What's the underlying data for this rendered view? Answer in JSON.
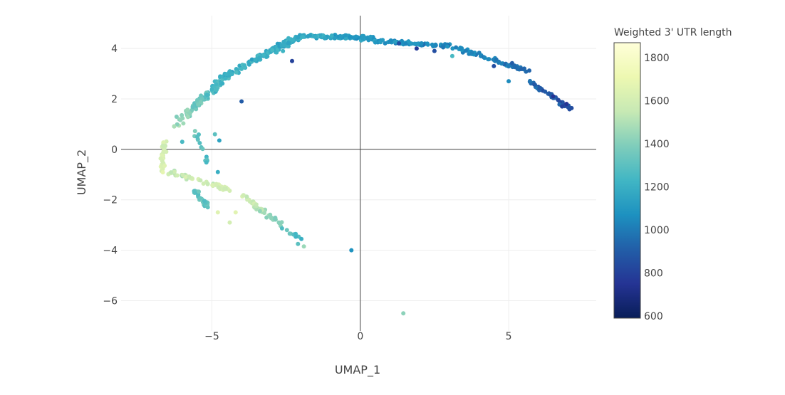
{
  "chart_data": {
    "type": "scatter",
    "xlabel": "UMAP_1",
    "ylabel": "UMAP_2",
    "xlim": [
      -8.06,
      7.95
    ],
    "ylim": [
      -7.2,
      5.3
    ],
    "x_ticks": [
      -5,
      0,
      5
    ],
    "y_ticks": [
      -6,
      -4,
      -2,
      0,
      2,
      4
    ],
    "grid": true,
    "zero_lines": true,
    "colorbar": {
      "title": "Weighted 3' UTR length",
      "range": [
        590,
        1870
      ],
      "ticks": [
        600,
        800,
        1000,
        1200,
        1400,
        1600,
        1800
      ],
      "colorscale": [
        "#081d58",
        "#253494",
        "#225ea8",
        "#1d91c0",
        "#41b6c4",
        "#7fcdbb",
        "#c7e9b4",
        "#edf8b1",
        "#ffffd9"
      ]
    },
    "tick_text": {
      "x": [
        "−5",
        "0",
        "5"
      ],
      "y": [
        "−6",
        "−4",
        "−2",
        "0",
        "2",
        "4"
      ],
      "cbar": [
        "600",
        "800",
        "1000",
        "1200",
        "1400",
        "1600",
        "1800"
      ]
    },
    "point_groups": [
      {
        "x0": -6.2,
        "y0": 1.0,
        "x1": -4.4,
        "y1": 3.0,
        "n": 110,
        "spread": 0.22,
        "c0": 1450,
        "c1": 1200
      },
      {
        "x0": -4.4,
        "y0": 3.0,
        "x1": -2.0,
        "y1": 4.5,
        "n": 120,
        "spread": 0.18,
        "c0": 1220,
        "c1": 1170
      },
      {
        "x0": -2.0,
        "y0": 4.5,
        "x1": 0.5,
        "y1": 4.4,
        "n": 110,
        "spread": 0.12,
        "c0": 1180,
        "c1": 1100
      },
      {
        "x0": 0.5,
        "y0": 4.3,
        "x1": 3.0,
        "y1": 4.1,
        "n": 70,
        "spread": 0.1,
        "c0": 1100,
        "c1": 1030
      },
      {
        "x0": 3.0,
        "y0": 4.1,
        "x1": 5.7,
        "y1": 3.1,
        "n": 60,
        "spread": 0.12,
        "c0": 1080,
        "c1": 950
      },
      {
        "x0": 5.7,
        "y0": 2.7,
        "x1": 7.1,
        "y1": 1.6,
        "n": 45,
        "spread": 0.1,
        "c0": 930,
        "c1": 850
      },
      {
        "x0": -6.6,
        "y0": 0.3,
        "x1": -6.7,
        "y1": -0.9,
        "n": 40,
        "spread": 0.12,
        "c0": 1580,
        "c1": 1650
      },
      {
        "x0": -6.4,
        "y0": -0.9,
        "x1": -4.4,
        "y1": -1.6,
        "n": 55,
        "spread": 0.12,
        "c0": 1560,
        "c1": 1600
      },
      {
        "x0": -4.0,
        "y0": -1.8,
        "x1": -2.0,
        "y1": -3.6,
        "n": 60,
        "spread": 0.12,
        "c0": 1620,
        "c1": 1250
      },
      {
        "x0": -5.6,
        "y0": -1.6,
        "x1": -5.1,
        "y1": -2.3,
        "n": 35,
        "spread": 0.12,
        "c0": 1330,
        "c1": 1320
      },
      {
        "x0": -5.6,
        "y0": 0.8,
        "x1": -5.1,
        "y1": -0.6,
        "n": 15,
        "spread": 0.12,
        "c0": 1350,
        "c1": 1250
      }
    ],
    "extra_points": [
      {
        "x": -0.3,
        "y": -4.0,
        "c": 1080
      },
      {
        "x": 1.45,
        "y": -6.5,
        "c": 1420
      },
      {
        "x": -4.8,
        "y": -2.5,
        "c": 1650
      },
      {
        "x": -4.4,
        "y": -2.9,
        "c": 1600
      },
      {
        "x": -1.9,
        "y": -3.85,
        "c": 1450
      },
      {
        "x": -2.1,
        "y": -3.75,
        "c": 1300
      },
      {
        "x": -4.2,
        "y": -2.5,
        "c": 1660
      },
      {
        "x": -6.0,
        "y": 0.3,
        "c": 1250
      },
      {
        "x": -4.9,
        "y": 0.6,
        "c": 1300
      },
      {
        "x": -4.75,
        "y": 0.35,
        "c": 1150
      },
      {
        "x": -4.8,
        "y": -0.9,
        "c": 1200
      },
      {
        "x": -2.3,
        "y": 3.5,
        "c": 800
      },
      {
        "x": -4.0,
        "y": 1.9,
        "c": 900
      },
      {
        "x": 1.3,
        "y": 4.2,
        "c": 850
      },
      {
        "x": 1.9,
        "y": 4.0,
        "c": 780
      },
      {
        "x": 2.5,
        "y": 3.9,
        "c": 850
      },
      {
        "x": 4.5,
        "y": 3.3,
        "c": 850
      },
      {
        "x": 5.0,
        "y": 2.7,
        "c": 1050
      },
      {
        "x": 6.5,
        "y": 2.1,
        "c": 750
      },
      {
        "x": 6.8,
        "y": 1.7,
        "c": 800
      },
      {
        "x": 6.95,
        "y": 1.8,
        "c": 750
      },
      {
        "x": 3.1,
        "y": 3.7,
        "c": 1250
      }
    ]
  }
}
